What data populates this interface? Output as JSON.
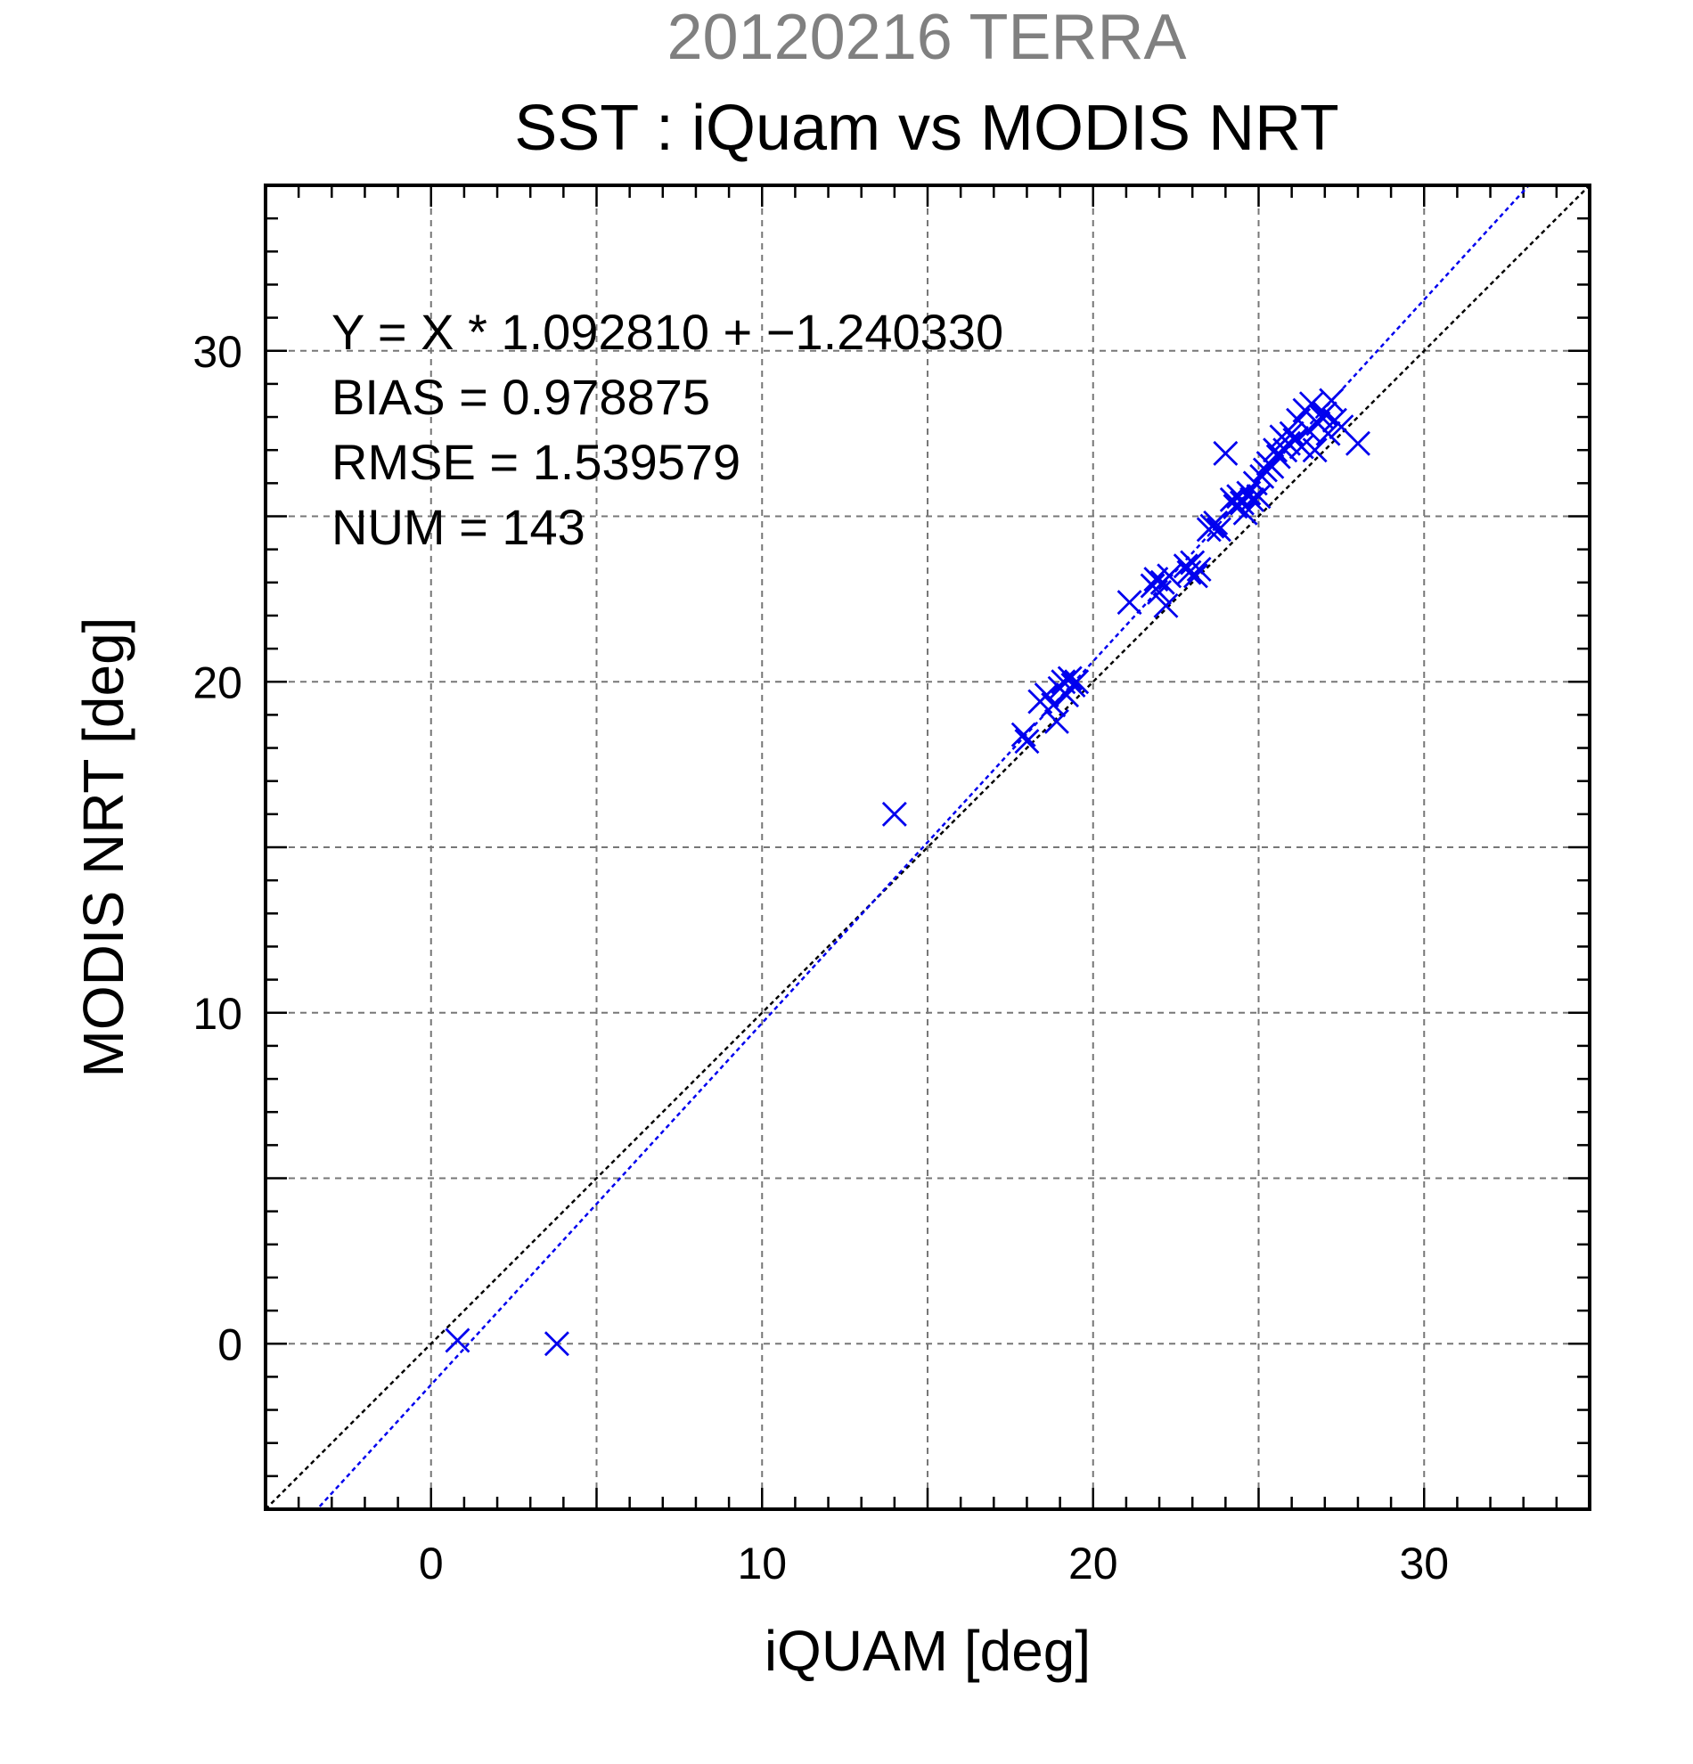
{
  "chart_data": {
    "type": "scatter",
    "supertitle": "20120216 TERRA",
    "title": "SST : iQuam vs MODIS NRT",
    "xlabel": "iQUAM [deg]",
    "ylabel": "MODIS NRT [deg]",
    "xlim": [
      -5,
      35
    ],
    "ylim": [
      -5,
      35
    ],
    "xticks": [
      0,
      10,
      20,
      30
    ],
    "yticks": [
      0,
      10,
      20,
      30
    ],
    "xtick_labels": [
      "0",
      "10",
      "20",
      "30"
    ],
    "ytick_labels": [
      "0",
      "10",
      "20",
      "30"
    ],
    "grid": true,
    "stats": [
      "Y = X * 1.092810 + −1.240330",
      "BIAS = 0.978875",
      "RMSE = 1.539579",
      "NUM = 143"
    ],
    "fit": {
      "slope": 1.09281,
      "intercept": -1.24033,
      "color": "#0000ee"
    },
    "identity_line": {
      "color": "#000000"
    },
    "marker": "x",
    "marker_color": "#0000ee",
    "points": [
      [
        0.8,
        0.1
      ],
      [
        3.8,
        0.0
      ],
      [
        14.0,
        16.0
      ],
      [
        17.9,
        18.4
      ],
      [
        18.0,
        18.2
      ],
      [
        18.4,
        19.4
      ],
      [
        18.6,
        19.6
      ],
      [
        18.8,
        19.3
      ],
      [
        18.9,
        18.8
      ],
      [
        19.0,
        19.8
      ],
      [
        19.1,
        20.0
      ],
      [
        19.2,
        19.6
      ],
      [
        19.3,
        20.1
      ],
      [
        19.4,
        19.9
      ],
      [
        19.5,
        20.0
      ],
      [
        21.1,
        22.4
      ],
      [
        21.8,
        22.9
      ],
      [
        21.9,
        23.1
      ],
      [
        22.0,
        22.7
      ],
      [
        22.1,
        23.0
      ],
      [
        22.2,
        22.3
      ],
      [
        22.3,
        23.2
      ],
      [
        22.8,
        23.5
      ],
      [
        22.9,
        23.3
      ],
      [
        23.0,
        23.6
      ],
      [
        23.1,
        23.2
      ],
      [
        23.2,
        23.4
      ],
      [
        23.5,
        24.6
      ],
      [
        23.6,
        24.7
      ],
      [
        23.7,
        24.8
      ],
      [
        23.8,
        24.6
      ],
      [
        24.0,
        26.9
      ],
      [
        24.2,
        25.5
      ],
      [
        24.3,
        25.3
      ],
      [
        24.4,
        25.6
      ],
      [
        24.5,
        25.4
      ],
      [
        24.6,
        25.1
      ],
      [
        24.7,
        25.7
      ],
      [
        24.8,
        25.5
      ],
      [
        24.9,
        26.0
      ],
      [
        25.0,
        25.6
      ],
      [
        25.1,
        26.2
      ],
      [
        25.2,
        26.4
      ],
      [
        25.3,
        26.6
      ],
      [
        25.4,
        26.5
      ],
      [
        25.5,
        27.0
      ],
      [
        25.6,
        26.8
      ],
      [
        25.7,
        27.4
      ],
      [
        25.8,
        27.0
      ],
      [
        25.9,
        27.2
      ],
      [
        26.0,
        27.5
      ],
      [
        26.1,
        27.3
      ],
      [
        26.2,
        27.9
      ],
      [
        26.3,
        27.1
      ],
      [
        26.4,
        28.2
      ],
      [
        26.5,
        27.6
      ],
      [
        26.6,
        28.4
      ],
      [
        26.7,
        27.0
      ],
      [
        26.8,
        27.8
      ],
      [
        26.9,
        28.0
      ],
      [
        27.0,
        28.1
      ],
      [
        27.1,
        27.5
      ],
      [
        27.2,
        28.5
      ],
      [
        27.3,
        27.9
      ],
      [
        27.5,
        27.7
      ],
      [
        28.0,
        27.2
      ]
    ]
  }
}
